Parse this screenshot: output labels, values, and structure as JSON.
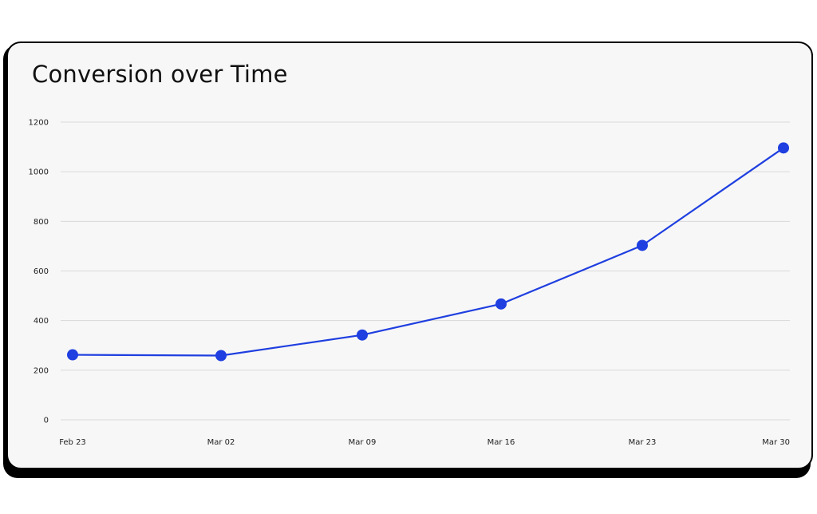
{
  "colors": {
    "line": "#1f3fe0",
    "point": "#1f3fe0",
    "grid": "#d9d9d9",
    "card_background": "#f7f7f7"
  },
  "chart_data": {
    "type": "line",
    "title": "Conversion over Time",
    "xlabel": "",
    "ylabel": "",
    "categories": [
      "Feb 23",
      "Mar 02",
      "Mar 09",
      "Mar 16",
      "Mar 23",
      "Mar 30"
    ],
    "series": [
      {
        "values": [
          262,
          259,
          342,
          467,
          703,
          1096
        ]
      }
    ],
    "yticks": [
      "0",
      "200",
      "400",
      "600",
      "800",
      "1000",
      "1200"
    ],
    "ylim": [
      0,
      1200
    ],
    "grid": "horizontal",
    "legend": "none"
  }
}
